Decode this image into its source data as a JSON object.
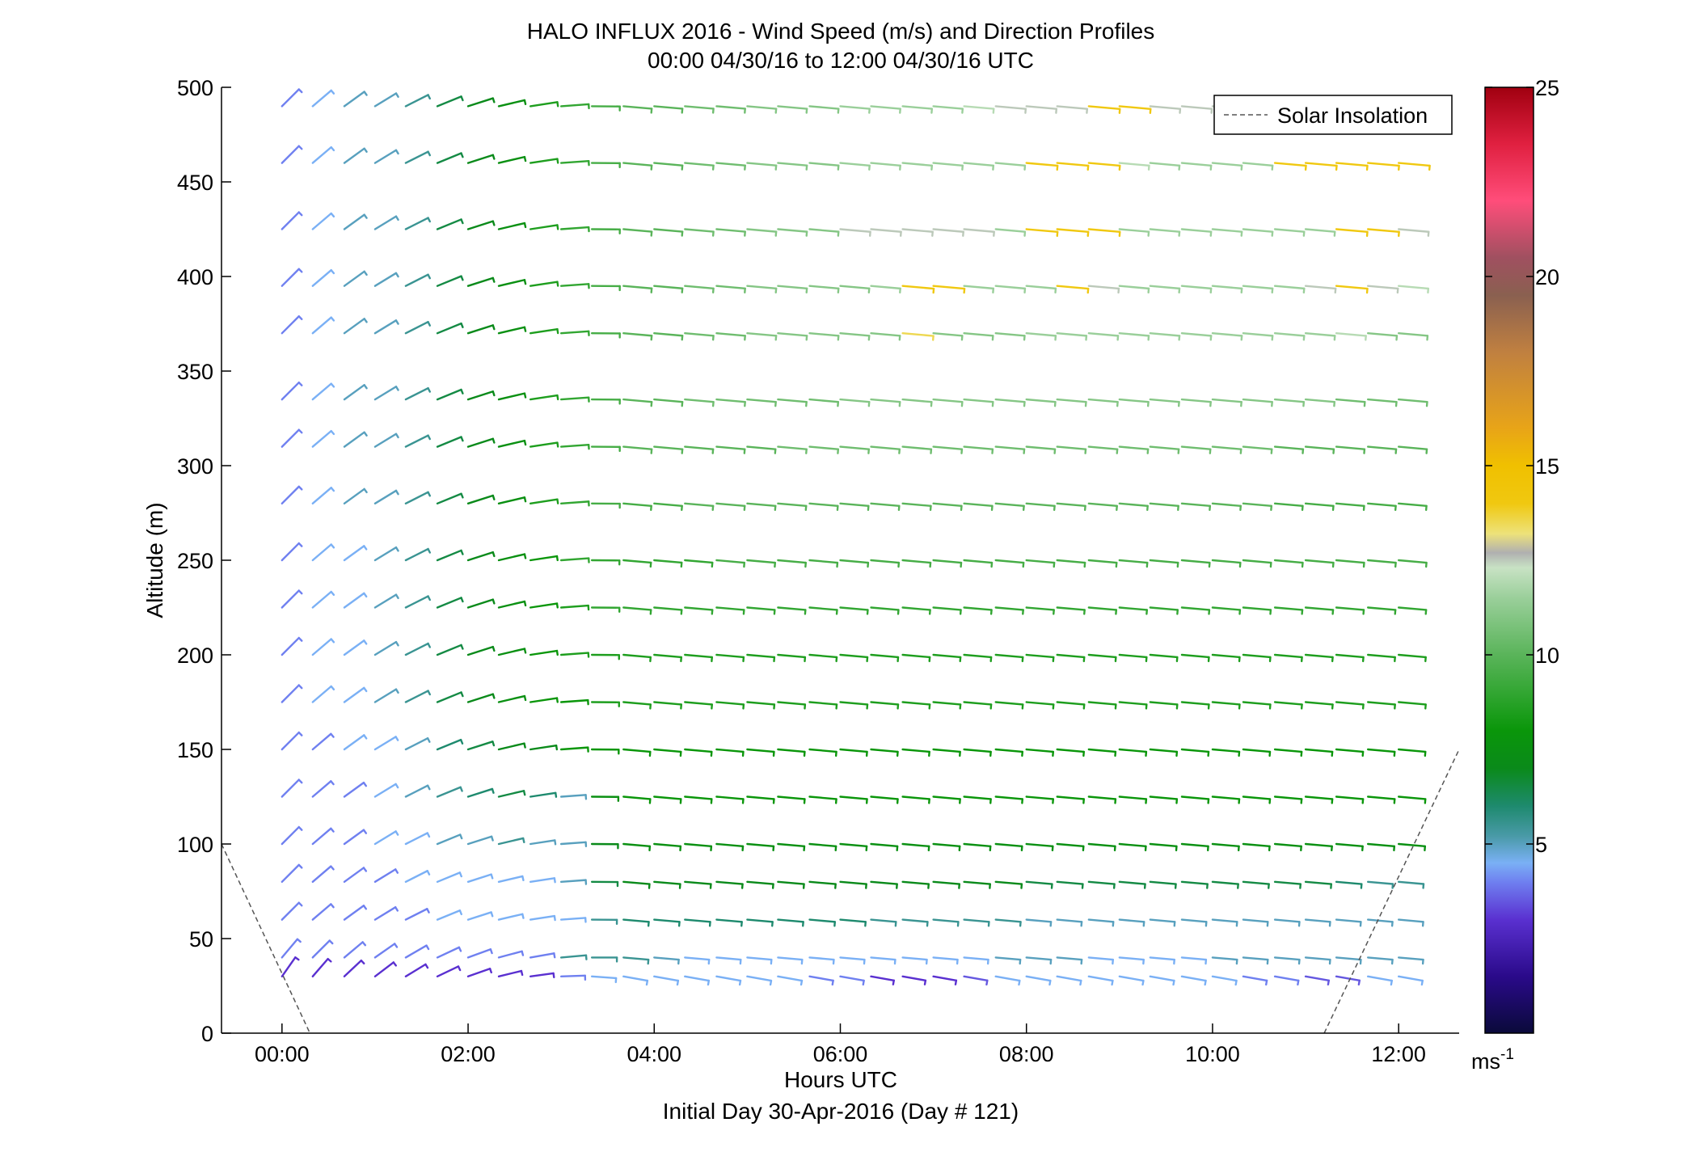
{
  "chart_data": {
    "type": "wind-barb-profile",
    "title": "HALO INFLUX 2016 - Wind Speed (m/s) and Direction Profiles",
    "subtitle": "00:00 04/30/16 to 12:00 04/30/16  UTC",
    "xlabel": "Hours UTC",
    "xlabel2": "Initial Day 30-Apr-2016 (Day # 121)",
    "ylabel": "Altitude (m)",
    "xlim": [
      -0.65,
      12.65
    ],
    "ylim": [
      0,
      500
    ],
    "x_ticks": [
      0,
      2,
      4,
      6,
      8,
      10,
      12
    ],
    "x_tick_labels": [
      "00:00",
      "02:00",
      "04:00",
      "06:00",
      "08:00",
      "10:00",
      "12:00"
    ],
    "y_ticks": [
      0,
      50,
      100,
      150,
      200,
      250,
      300,
      350,
      400,
      450,
      500
    ],
    "y_tick_labels": [
      "0",
      "50",
      "100",
      "150",
      "200",
      "250",
      "300",
      "350",
      "400",
      "450",
      "500"
    ],
    "legend": {
      "entries": [
        "Solar Insolation"
      ],
      "placement": "top-right"
    },
    "colorbar": {
      "range": [
        0,
        25
      ],
      "ticks": [
        5,
        10,
        15,
        20,
        25
      ],
      "tick_labels": [
        "5",
        "10",
        "15",
        "20",
        "25"
      ],
      "unit_label_base": "ms",
      "unit_label_exp": "-1",
      "stops": [
        [
          0,
          "#0a0a3a"
        ],
        [
          1.5,
          "#2a0a8a"
        ],
        [
          3,
          "#5a30d0"
        ],
        [
          4,
          "#6f80f0"
        ],
        [
          4.5,
          "#7ab0f5"
        ],
        [
          5.2,
          "#4a9aa8"
        ],
        [
          6,
          "#1e8a6e"
        ],
        [
          7,
          "#0a8a1a"
        ],
        [
          8,
          "#0a960a"
        ],
        [
          9,
          "#32a632"
        ],
        [
          10,
          "#5ab45a"
        ],
        [
          11.5,
          "#9acf9a"
        ],
        [
          12.3,
          "#c8e2c4"
        ],
        [
          12.7,
          "#b0b0b0"
        ],
        [
          13.2,
          "#ede27a"
        ],
        [
          14,
          "#f0c810"
        ],
        [
          15,
          "#f0c000"
        ],
        [
          16,
          "#e8a418"
        ],
        [
          18,
          "#c08040"
        ],
        [
          19.5,
          "#8a6050"
        ],
        [
          20.5,
          "#a05060"
        ],
        [
          22,
          "#ff4d7a"
        ],
        [
          23.5,
          "#e02040"
        ],
        [
          25,
          "#a00010"
        ]
      ]
    },
    "solar_insolation": {
      "segments": [
        [
          [
            -0.65,
            100
          ],
          [
            0.3,
            0
          ]
        ],
        [
          [
            11.2,
            0
          ],
          [
            12.65,
            150
          ]
        ]
      ]
    },
    "barb_times": [
      0.0,
      0.33,
      0.67,
      1.0,
      1.33,
      1.67,
      2.0,
      2.33,
      2.67,
      3.0,
      3.33,
      3.67,
      4.0,
      4.33,
      4.67,
      5.0,
      5.33,
      5.67,
      6.0,
      6.33,
      6.67,
      7.0,
      7.33,
      7.67,
      8.0,
      8.33,
      8.67,
      9.0,
      9.33,
      9.67,
      10.0,
      10.33,
      10.67,
      11.0,
      11.33,
      11.67,
      12.0
    ],
    "altitudes": [
      30,
      40,
      60,
      80,
      100,
      125,
      150,
      175,
      200,
      225,
      250,
      280,
      310,
      335,
      370,
      395,
      425,
      460,
      490
    ],
    "wind_rows": [
      {
        "alt": 30,
        "dir_start": 215,
        "dir_end": 280,
        "speed": [
          3,
          3,
          3,
          3,
          3,
          3,
          3,
          3,
          3,
          4,
          4.5,
          4.5,
          4.5,
          4.5,
          4.5,
          4.5,
          4.5,
          4,
          4,
          3,
          3,
          3,
          3.5,
          4.5,
          4.5,
          4.5,
          4.5,
          4.5,
          4.5,
          4.5,
          4.5,
          4,
          4,
          3.5,
          3.5,
          4.5,
          4.5
        ]
      },
      {
        "alt": 40,
        "dir_start": 220,
        "dir_end": 275,
        "speed": [
          4,
          4,
          4,
          4,
          4,
          4,
          4,
          4,
          4,
          5.5,
          5.5,
          5.5,
          5,
          4.5,
          4.5,
          4.5,
          4.5,
          4.5,
          4.5,
          4.5,
          4.5,
          4.5,
          4.5,
          5,
          5,
          5,
          4.5,
          4.5,
          4.5,
          4.5,
          5,
          5,
          5,
          5,
          5,
          5,
          5
        ]
      },
      {
        "alt": 60,
        "dir_start": 225,
        "dir_end": 275,
        "speed": [
          4,
          4,
          4,
          4,
          4,
          4.5,
          4.5,
          4.5,
          4.5,
          4.5,
          5.5,
          6,
          6,
          6,
          6,
          6,
          6,
          6,
          6,
          5.5,
          5.5,
          5.5,
          5.5,
          5.5,
          5,
          5,
          5,
          5,
          5,
          5,
          5,
          5,
          5,
          5,
          5,
          5,
          5
        ]
      },
      {
        "alt": 80,
        "dir_start": 225,
        "dir_end": 275,
        "speed": [
          4,
          4,
          4,
          4,
          4.5,
          4.5,
          4.5,
          4.5,
          4.5,
          5,
          6.5,
          7,
          7,
          7,
          7,
          7,
          7,
          7,
          7,
          7,
          7,
          7,
          7,
          7,
          6.5,
          6.5,
          6.5,
          6.5,
          6.5,
          6.5,
          6.5,
          6.5,
          6.5,
          6.5,
          6,
          5.5,
          5.5
        ]
      },
      {
        "alt": 100,
        "dir_start": 225,
        "dir_end": 275,
        "speed": [
          4,
          4,
          4,
          4.5,
          4.5,
          5,
          5,
          5.5,
          5,
          5,
          7,
          7.5,
          7.5,
          7.5,
          7.5,
          7.5,
          7.5,
          7.5,
          7.5,
          7.5,
          7.5,
          7.5,
          7.5,
          7.5,
          7.5,
          7.5,
          7.5,
          7.5,
          7.5,
          7.5,
          7.5,
          7.5,
          7.5,
          7.5,
          7.5,
          7.5,
          7.5
        ]
      },
      {
        "alt": 125,
        "dir_start": 225,
        "dir_end": 275,
        "speed": [
          4,
          4,
          4,
          4.5,
          5,
          5.5,
          6,
          6.5,
          6,
          5,
          7.5,
          8,
          8,
          8,
          8,
          8,
          8,
          8,
          8,
          8,
          8,
          8,
          8,
          8,
          8,
          8,
          8,
          8,
          8,
          8,
          8,
          8,
          8,
          8,
          8,
          8,
          8
        ]
      },
      {
        "alt": 150,
        "dir_start": 225,
        "dir_end": 275,
        "speed": [
          4,
          4,
          4.5,
          4.5,
          5,
          6,
          6.5,
          7,
          7,
          8,
          8,
          8,
          8,
          8,
          8,
          8,
          8,
          8,
          8,
          8,
          8,
          8,
          8,
          8,
          8,
          8,
          8,
          8,
          8,
          8,
          8,
          8,
          8,
          8,
          8,
          8,
          8
        ]
      },
      {
        "alt": 175,
        "dir_start": 225,
        "dir_end": 275,
        "speed": [
          4,
          4.5,
          4.5,
          5,
          5.5,
          6.5,
          7,
          7.5,
          8,
          8,
          8.5,
          8.5,
          8.5,
          8.5,
          8.5,
          8.5,
          8.5,
          8.5,
          8.5,
          8.5,
          8.5,
          8.5,
          8.5,
          8.5,
          8.5,
          8.5,
          8.5,
          8.5,
          8.5,
          8.5,
          8.5,
          8.5,
          8.5,
          8.5,
          8.5,
          8.5,
          8.5
        ]
      },
      {
        "alt": 200,
        "dir_start": 225,
        "dir_end": 275,
        "speed": [
          4,
          4.5,
          4.5,
          5,
          5.5,
          6.5,
          7,
          7.5,
          8,
          8.5,
          8.5,
          8.5,
          8.5,
          8.5,
          8.5,
          8.5,
          8.5,
          8.5,
          8.5,
          8.5,
          8.5,
          8.5,
          8.5,
          8.5,
          8.5,
          8.5,
          8.5,
          8.5,
          8.5,
          8.5,
          8.5,
          8.5,
          8.5,
          8.5,
          8.5,
          8.5,
          8.5
        ]
      },
      {
        "alt": 225,
        "dir_start": 225,
        "dir_end": 275,
        "speed": [
          4,
          4.5,
          4.5,
          5,
          5.5,
          6.5,
          7,
          7.5,
          8,
          8.5,
          9,
          9,
          9,
          9,
          9,
          9,
          9,
          9,
          9,
          9,
          9,
          9,
          9,
          9,
          9,
          9,
          9,
          9,
          9,
          9,
          9,
          9,
          9,
          9,
          9,
          9,
          9
        ]
      },
      {
        "alt": 250,
        "dir_start": 225,
        "dir_end": 275,
        "speed": [
          4,
          4.5,
          4.5,
          5,
          5.5,
          6.5,
          7,
          7.5,
          8,
          9,
          9,
          9,
          9,
          9,
          9.5,
          9.5,
          9.5,
          9.5,
          9.5,
          9.5,
          9.5,
          9.5,
          9.5,
          9.5,
          9.5,
          9.5,
          9.5,
          9.5,
          9.5,
          9.5,
          9.5,
          9.5,
          9.5,
          9.5,
          9.5,
          9.5,
          9.5
        ]
      },
      {
        "alt": 280,
        "dir_start": 225,
        "dir_end": 275,
        "speed": [
          4,
          4.5,
          5,
          5,
          5.5,
          6.5,
          7,
          7.5,
          8.5,
          9,
          9.5,
          9.5,
          9.5,
          10,
          10,
          10,
          10,
          10,
          10,
          10,
          10,
          10,
          10,
          10,
          10,
          10,
          10,
          10,
          10,
          10,
          10,
          10,
          9.5,
          9.5,
          9.5,
          9.5,
          9.5
        ]
      },
      {
        "alt": 310,
        "dir_start": 225,
        "dir_end": 275,
        "speed": [
          4,
          4.5,
          5,
          5,
          5.5,
          6.5,
          7,
          7.5,
          8.5,
          9,
          9.5,
          10,
          10,
          10,
          10,
          10,
          10.5,
          10.5,
          10.5,
          10.5,
          10.5,
          10.5,
          10.5,
          10.5,
          10.5,
          10.5,
          10.5,
          10.5,
          10.5,
          10.5,
          10.5,
          10.5,
          10,
          10,
          10,
          10,
          10
        ]
      },
      {
        "alt": 335,
        "dir_start": 225,
        "dir_end": 275,
        "speed": [
          4,
          4.5,
          5,
          5,
          5.5,
          6.5,
          7,
          7.5,
          8.5,
          9,
          9.5,
          10,
          10,
          10.5,
          10.5,
          10.5,
          10.5,
          10.5,
          11,
          11,
          11,
          11,
          11,
          11,
          11,
          11,
          11,
          11,
          11,
          11,
          11,
          11,
          11,
          11,
          10.5,
          10.5,
          10.5
        ]
      },
      {
        "alt": 370,
        "dir_start": 225,
        "dir_end": 275,
        "speed": [
          4,
          4.5,
          5,
          5,
          5.5,
          6.5,
          7,
          7.5,
          8.5,
          9,
          9.5,
          10,
          10,
          10.5,
          10.5,
          11,
          11,
          11,
          11,
          11,
          13.5,
          11,
          11,
          11,
          11.5,
          11.5,
          11.5,
          11.5,
          11.5,
          11.5,
          11.5,
          11.5,
          11.5,
          11.5,
          12,
          11,
          11
        ]
      },
      {
        "alt": 395,
        "dir_start": 225,
        "dir_end": 275,
        "speed": [
          4,
          4.5,
          5,
          5,
          5.5,
          6.5,
          7,
          7.5,
          8.5,
          9,
          9.5,
          10,
          10,
          10.5,
          10.5,
          11,
          11,
          11,
          11,
          11.5,
          14,
          14,
          11.5,
          11.5,
          11.5,
          14,
          12.5,
          11.5,
          11.5,
          11.5,
          11.5,
          11.5,
          11.5,
          12.5,
          14,
          12.5,
          12
        ]
      },
      {
        "alt": 425,
        "dir_start": 225,
        "dir_end": 275,
        "speed": [
          4,
          4.5,
          5,
          5,
          5.5,
          6.5,
          7,
          7.5,
          8.5,
          9,
          9.5,
          10,
          10,
          10.5,
          10.5,
          11,
          11,
          11,
          12.5,
          12.5,
          12.5,
          12.5,
          12.5,
          11.5,
          14,
          14,
          14,
          11.5,
          11.5,
          11.5,
          11.5,
          11.5,
          11.5,
          11.5,
          14,
          14,
          12.5
        ]
      },
      {
        "alt": 460,
        "dir_start": 225,
        "dir_end": 275,
        "speed": [
          4,
          4.5,
          5,
          5,
          5.5,
          6.5,
          7,
          7.5,
          8.5,
          9,
          9.5,
          10,
          10,
          10.5,
          10.5,
          11,
          11,
          11,
          11.5,
          11.5,
          11.5,
          11.5,
          11.5,
          11.5,
          14,
          14,
          14,
          12,
          11.5,
          11.5,
          11.5,
          11.5,
          14,
          14,
          14,
          14,
          14
        ]
      },
      {
        "alt": 490,
        "dir_start": 225,
        "dir_end": 275,
        "speed": [
          4,
          4.5,
          5,
          5,
          5.5,
          6.5,
          7,
          7.5,
          8.5,
          9,
          9.5,
          10,
          10,
          10.5,
          10.5,
          11,
          11,
          11,
          11.5,
          11.5,
          11.5,
          11.5,
          12,
          12.5,
          12.5,
          12.5,
          14,
          14,
          12.5,
          12.5,
          12.5,
          12.5,
          null,
          null,
          null,
          null,
          null
        ]
      }
    ]
  }
}
